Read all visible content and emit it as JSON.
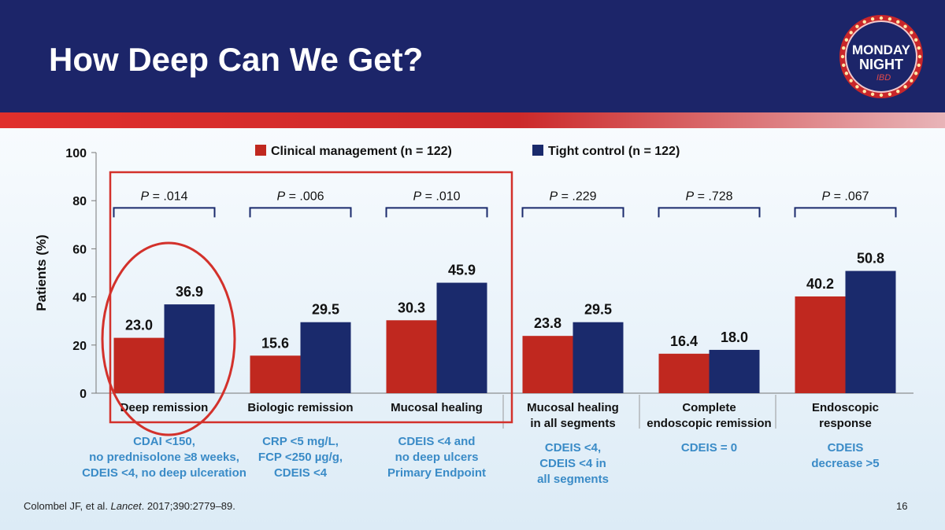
{
  "slide": {
    "title": "How Deep Can We Get?",
    "logo_line1": "MONDAY",
    "logo_line2": "NIGHT",
    "logo_line3": "IBD",
    "reference_prefix": "Colombel JF, et al. ",
    "reference_journal": "Lancet",
    "reference_suffix": ". 2017;390:2779–89.",
    "page_number": "16"
  },
  "colors": {
    "header_bg": "#1c2569",
    "clinical": "#c0281f",
    "tight": "#1a2a6c",
    "desc_text": "#3a8bc7",
    "highlight": "#d3312b"
  },
  "chart_data": {
    "type": "bar",
    "ylabel": "Patients (%)",
    "ylim": [
      0,
      100
    ],
    "yticks": [
      "0",
      "20",
      "40",
      "60",
      "80",
      "100"
    ],
    "categories": [
      [
        "Deep remission"
      ],
      [
        "Biologic remission"
      ],
      [
        "Mucosal healing"
      ],
      [
        "Mucosal healing",
        "in all segments"
      ],
      [
        "Complete",
        "endoscopic remission"
      ],
      [
        "Endoscopic",
        "response"
      ]
    ],
    "series": [
      {
        "name": "Clinical management (n = 122)",
        "values": [
          23.0,
          15.6,
          30.3,
          23.8,
          16.4,
          40.2
        ],
        "labels": [
          "23.0",
          "15.6",
          "30.3",
          "23.8",
          "16.4",
          "40.2"
        ]
      },
      {
        "name": "Tight control (n = 122)",
        "values": [
          36.9,
          29.5,
          45.9,
          29.5,
          18.0,
          50.8
        ],
        "labels": [
          "36.9",
          "29.5",
          "45.9",
          "29.5",
          "18.0",
          "50.8"
        ]
      }
    ],
    "p_values": [
      ".014",
      ".006",
      ".010",
      ".229",
      ".728",
      ".067"
    ],
    "p_prefix": "P = ",
    "bracket_level": 77,
    "legend_position": "top"
  },
  "descriptions": [
    [
      "CDAI <150,",
      "no prednisolone ≥8 weeks,",
      "CDEIS <4, no deep ulceration"
    ],
    [
      "CRP <5 mg/L,",
      "FCP <250 µg/g,",
      "CDEIS <4"
    ],
    [
      "CDEIS <4 and",
      "no deep ulcers",
      "Primary Endpoint"
    ],
    [
      "CDEIS <4,",
      "CDEIS <4 in",
      "all segments"
    ],
    [
      "CDEIS = 0"
    ],
    [
      "CDEIS",
      "decrease >5"
    ]
  ]
}
